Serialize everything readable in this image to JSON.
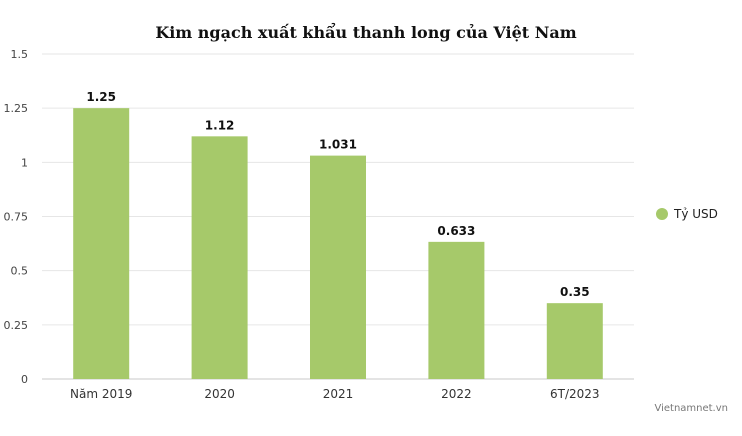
{
  "chart_data": {
    "type": "bar",
    "title": "Kim ngạch xuất khẩu thanh long của Việt Nam",
    "categories": [
      "Năm 2019",
      "2020",
      "2021",
      "2022",
      "6T/2023"
    ],
    "series": [
      {
        "name": "Tỷ USD",
        "values": [
          1.25,
          1.12,
          1.031,
          0.633,
          0.35
        ],
        "color": "#a6c96a"
      }
    ],
    "data_labels": [
      "1.25",
      "1.12",
      "1.031",
      "0.633",
      "0.35"
    ],
    "ylim": [
      0,
      1.5
    ],
    "yticks": [
      0,
      0.25,
      0.5,
      0.75,
      1,
      1.25,
      1.5
    ],
    "ytick_labels": [
      "0",
      "0.25",
      "0.5",
      "0.75",
      "1",
      "1.25",
      "1.5"
    ],
    "grid": true,
    "legend_position": "right",
    "xlabel": "",
    "ylabel": ""
  },
  "credit": "Vietnamnet.vn"
}
